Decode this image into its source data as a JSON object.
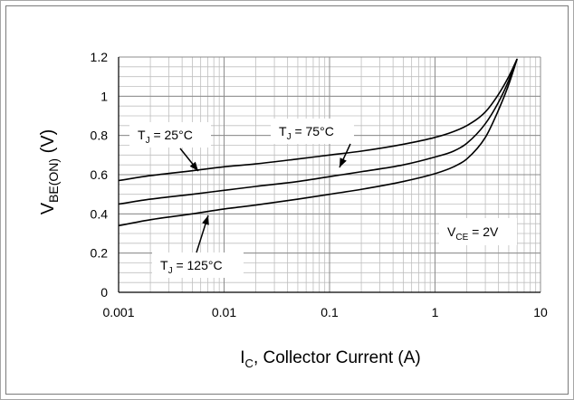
{
  "chart_data": {
    "type": "line",
    "xscale": "log",
    "xlim": [
      0.001,
      10
    ],
    "ylim": [
      0,
      1.2
    ],
    "grid": true,
    "x_ticks": [
      "0.001",
      "0.01",
      "0.1",
      "1",
      "10"
    ],
    "y_ticks": [
      "0",
      "0.2",
      "0.4",
      "0.6",
      "0.8",
      "1",
      "1.2"
    ],
    "xlabel": {
      "main": "I",
      "sub": "C",
      "rest": ", Collector Current (A)"
    },
    "ylabel": {
      "main": "V",
      "sub": "BE(ON)",
      "rest": " (V)"
    },
    "annotations": [
      {
        "id": "tj25",
        "pre": "T",
        "sub": "J",
        "post": " = 25°C"
      },
      {
        "id": "tj75",
        "pre": "T",
        "sub": "J",
        "post": " = 75°C"
      },
      {
        "id": "tj125",
        "pre": "T",
        "sub": "J",
        "post": " = 125°C"
      },
      {
        "id": "vce",
        "pre": "V",
        "sub": "CE",
        "post": " = 2V"
      }
    ],
    "series": [
      {
        "annotation": "tj25",
        "x": [
          0.001,
          0.002,
          0.005,
          0.01,
          0.02,
          0.05,
          0.1,
          0.2,
          0.5,
          1,
          1.5,
          2,
          3,
          4,
          5,
          6
        ],
        "y": [
          0.57,
          0.595,
          0.62,
          0.64,
          0.655,
          0.68,
          0.7,
          0.72,
          0.755,
          0.79,
          0.82,
          0.85,
          0.92,
          1.01,
          1.1,
          1.19
        ]
      },
      {
        "annotation": "tj75",
        "x": [
          0.001,
          0.002,
          0.005,
          0.01,
          0.02,
          0.05,
          0.1,
          0.2,
          0.5,
          1,
          1.5,
          2,
          3,
          4,
          5,
          6
        ],
        "y": [
          0.45,
          0.475,
          0.5,
          0.52,
          0.54,
          0.565,
          0.59,
          0.615,
          0.65,
          0.69,
          0.72,
          0.76,
          0.86,
          0.97,
          1.08,
          1.19
        ]
      },
      {
        "annotation": "tj125",
        "x": [
          0.001,
          0.002,
          0.005,
          0.01,
          0.02,
          0.05,
          0.1,
          0.2,
          0.5,
          1,
          1.5,
          2,
          3,
          4,
          5,
          6
        ],
        "y": [
          0.34,
          0.37,
          0.4,
          0.425,
          0.445,
          0.475,
          0.5,
          0.525,
          0.565,
          0.605,
          0.64,
          0.68,
          0.79,
          0.93,
          1.06,
          1.19
        ]
      }
    ],
    "colors": {
      "line": "#000000",
      "grid": "#bfbfbf",
      "axis": "#000000"
    }
  }
}
